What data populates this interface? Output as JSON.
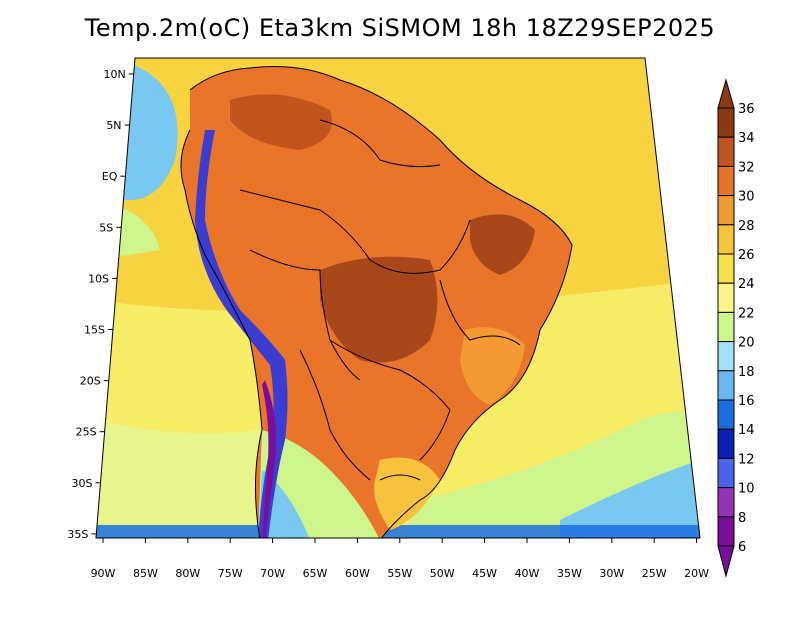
{
  "title": "Temp.2m(oC) Eta3km SiSMOM 18h 18Z29SEP2025",
  "map": {
    "lat_ticks": [
      "10N",
      "5N",
      "EQ",
      "5S",
      "10S",
      "15S",
      "20S",
      "25S",
      "30S",
      "35S"
    ],
    "lon_ticks": [
      "90W",
      "85W",
      "80W",
      "75W",
      "70W",
      "65W",
      "60W",
      "55W",
      "50W",
      "45W",
      "40W",
      "35W",
      "30W",
      "25W",
      "20W"
    ],
    "colors": {
      "ocean_warm": "#f7d43f",
      "ocean_pale": "#f7ec66",
      "ocean_cool": "#e7f58c",
      "ocean_blue": "#78c8f0",
      "land_hot": "#e8752a",
      "land_very_hot": "#a8481a",
      "andes_cold": "#3c3cd0"
    }
  },
  "colorbar": {
    "unit": "oC",
    "levels": [
      "36",
      "34",
      "32",
      "30",
      "28",
      "26",
      "24",
      "22",
      "20",
      "18",
      "16",
      "14",
      "12",
      "10",
      "8",
      "6"
    ],
    "colors": [
      "#8b3a12",
      "#c4541e",
      "#e8742a",
      "#f49a34",
      "#f7c23c",
      "#f9e04e",
      "#fcf488",
      "#cdf58c",
      "#a0e0fa",
      "#6ab8f0",
      "#1a6ee0",
      "#0a20b0",
      "#4a64ee",
      "#9632b8",
      "#7a0e9a"
    ]
  }
}
